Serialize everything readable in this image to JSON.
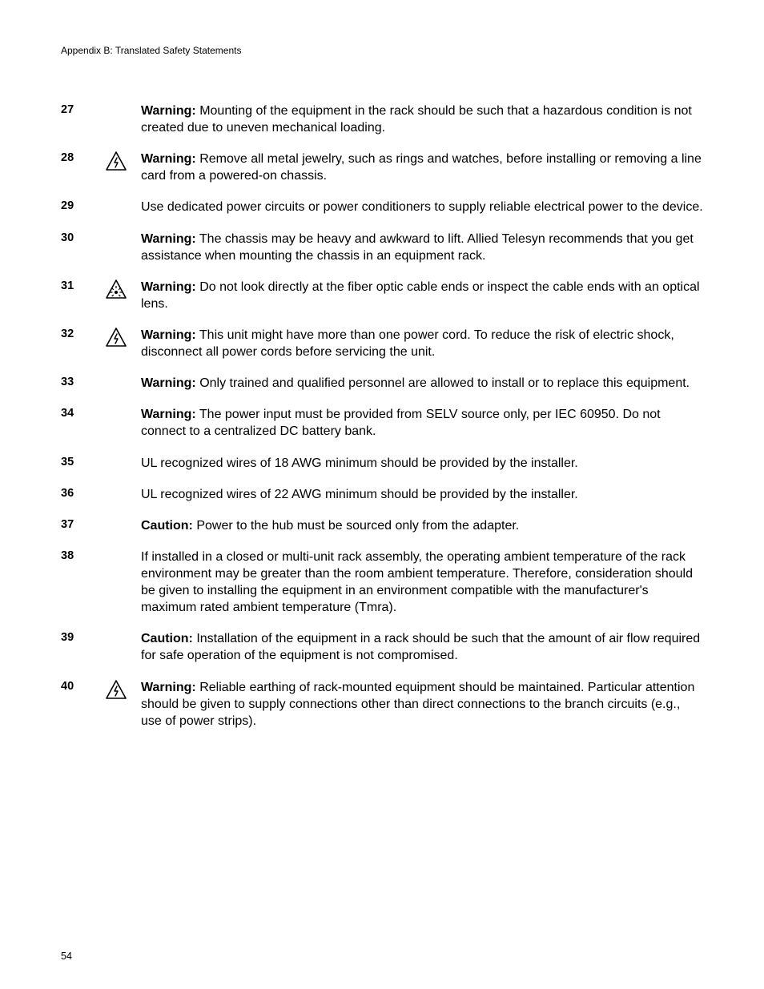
{
  "header": "Appendix B: Translated Safety Statements",
  "page_number": "54",
  "icon_stroke": "#000000",
  "statements": [
    {
      "num": "27",
      "icon": null,
      "label": "Warning:",
      "text": "Mounting of the equipment in the rack should be such that a hazardous condition is not created due to uneven mechanical loading."
    },
    {
      "num": "28",
      "icon": "shock",
      "label": "Warning:",
      "text": "Remove all metal jewelry, such as rings and watches, before installing or removing a line card from a powered-on chassis."
    },
    {
      "num": "29",
      "icon": null,
      "label": null,
      "text": "Use dedicated power circuits or power conditioners to supply reliable electrical power to the device."
    },
    {
      "num": "30",
      "icon": null,
      "label": "Warning:",
      "text": "The chassis may be heavy and awkward to lift. Allied Telesyn recommends that you get assistance when mounting the chassis in an equipment rack."
    },
    {
      "num": "31",
      "icon": "laser",
      "label": "Warning:",
      "text": "Do not look directly at the fiber optic cable ends or inspect the cable ends with an optical lens."
    },
    {
      "num": "32",
      "icon": "shock",
      "label": "Warning:",
      "text": "This unit might have more than one power cord. To reduce the risk of electric shock, disconnect all power cords before servicing the unit."
    },
    {
      "num": "33",
      "icon": null,
      "label": "Warning:",
      "text": "Only trained and qualified personnel are allowed to install or to replace this equipment."
    },
    {
      "num": "34",
      "icon": null,
      "label": "Warning:",
      "text": "The power input must be provided from SELV source only, per IEC 60950. Do not connect to a centralized DC battery bank."
    },
    {
      "num": "35",
      "icon": null,
      "label": null,
      "text": "UL recognized wires of 18 AWG minimum should be provided by the installer."
    },
    {
      "num": "36",
      "icon": null,
      "label": null,
      "text": "UL recognized wires of 22 AWG minimum should be provided by the installer."
    },
    {
      "num": "37",
      "icon": null,
      "label": "Caution:",
      "text": "Power to the hub must be sourced only from the adapter."
    },
    {
      "num": "38",
      "icon": null,
      "label": null,
      "text": "If installed in a closed or multi-unit rack assembly, the operating ambient temperature of the rack environment may be greater than the room ambient temperature. Therefore, consideration should be given to installing the equipment in an environment compatible with the manufacturer's maximum rated ambient temperature (Tmra)."
    },
    {
      "num": "39",
      "icon": null,
      "label": "Caution:",
      "text": "Installation of the equipment in a rack should be such that the amount of air flow required for safe operation of the equipment is not compromised."
    },
    {
      "num": "40",
      "icon": "shock",
      "label": "Warning:",
      "text": "Reliable earthing of rack-mounted equipment should be maintained. Particular attention should be given to supply connections other than direct connections to the branch circuits (e.g., use of power strips)."
    }
  ]
}
